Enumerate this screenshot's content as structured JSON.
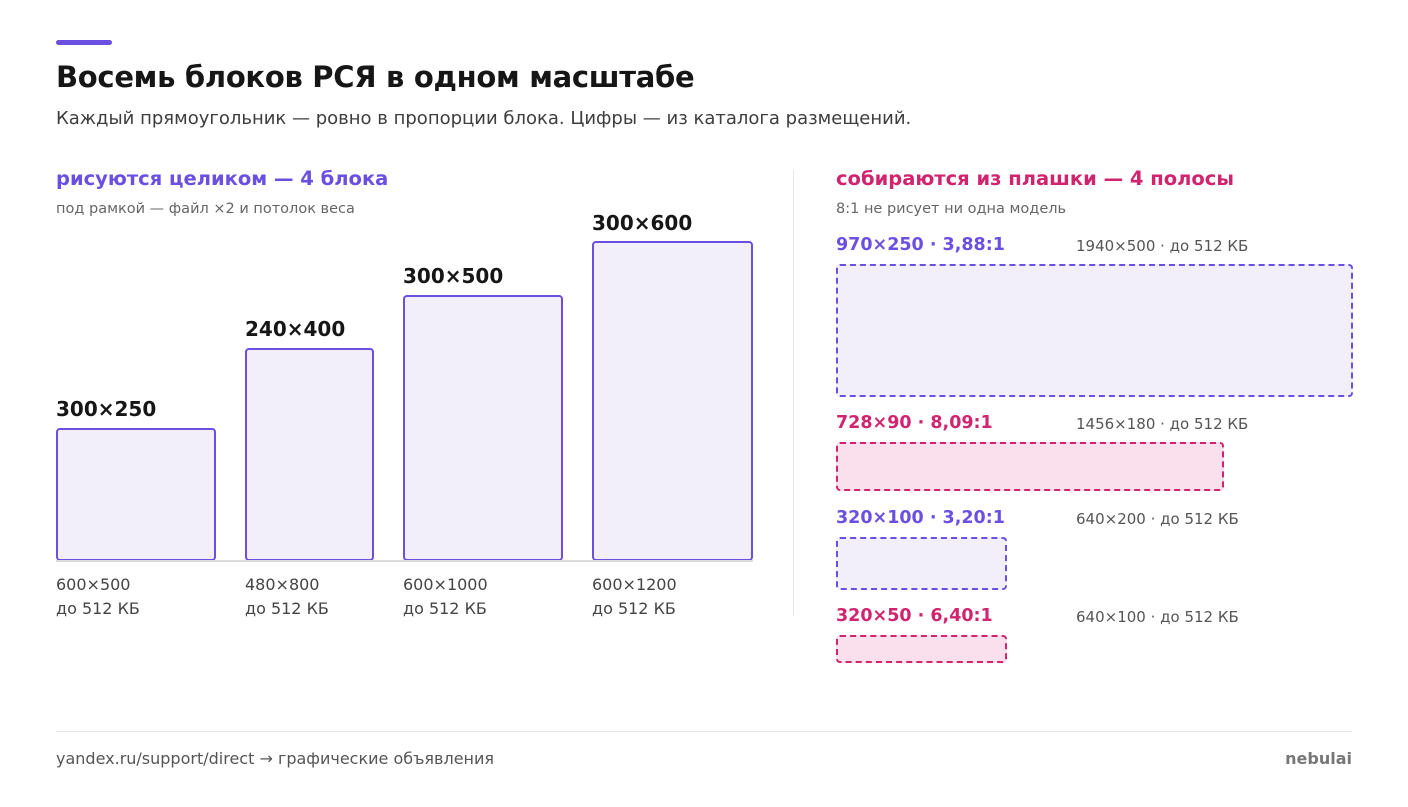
{
  "header": {
    "title": "Восемь блоков РСЯ в одном масштабе",
    "subtitle": "Каждый прямоугольник — ровно в пропорции блока. Цифры — из каталога размещений."
  },
  "left": {
    "heading": "рисуются целиком — 4 блока",
    "note": "под рамкой — файл ×2 и потолок веса",
    "blocks": [
      {
        "label": "300×250",
        "file": "600×500",
        "limit": "до 512 КБ"
      },
      {
        "label": "240×400",
        "file": "480×800",
        "limit": "до 512 КБ"
      },
      {
        "label": "300×500",
        "file": "600×1000",
        "limit": "до 512 КБ"
      },
      {
        "label": "300×600",
        "file": "600×1200",
        "limit": "до 512 КБ"
      }
    ]
  },
  "right": {
    "heading": "собираются из плашки — 4 полосы",
    "note": "8:1 не рисует ни одна модель",
    "strips": [
      {
        "title": "970×250 · 3,88:1",
        "file": "1940×500 · до 512 КБ",
        "accent": "violet"
      },
      {
        "title": "728×90 · 8,09:1",
        "file": "1456×180 · до 512 КБ",
        "accent": "pink"
      },
      {
        "title": "320×100 · 3,20:1",
        "file": "640×200 · до 512 КБ",
        "accent": "violet"
      },
      {
        "title": "320×50 · 6,40:1",
        "file": "640×100 · до 512 КБ",
        "accent": "pink"
      }
    ]
  },
  "footer": {
    "source": "yandex.ru/support/direct → графические объявления",
    "brand": "nebulai"
  },
  "colors": {
    "violet": "#6b4fe0",
    "violet_fill": "#f2effb",
    "pink": "#d1246e",
    "pink_fill": "#fae0ec",
    "text": "#161616",
    "muted": "#666666"
  }
}
